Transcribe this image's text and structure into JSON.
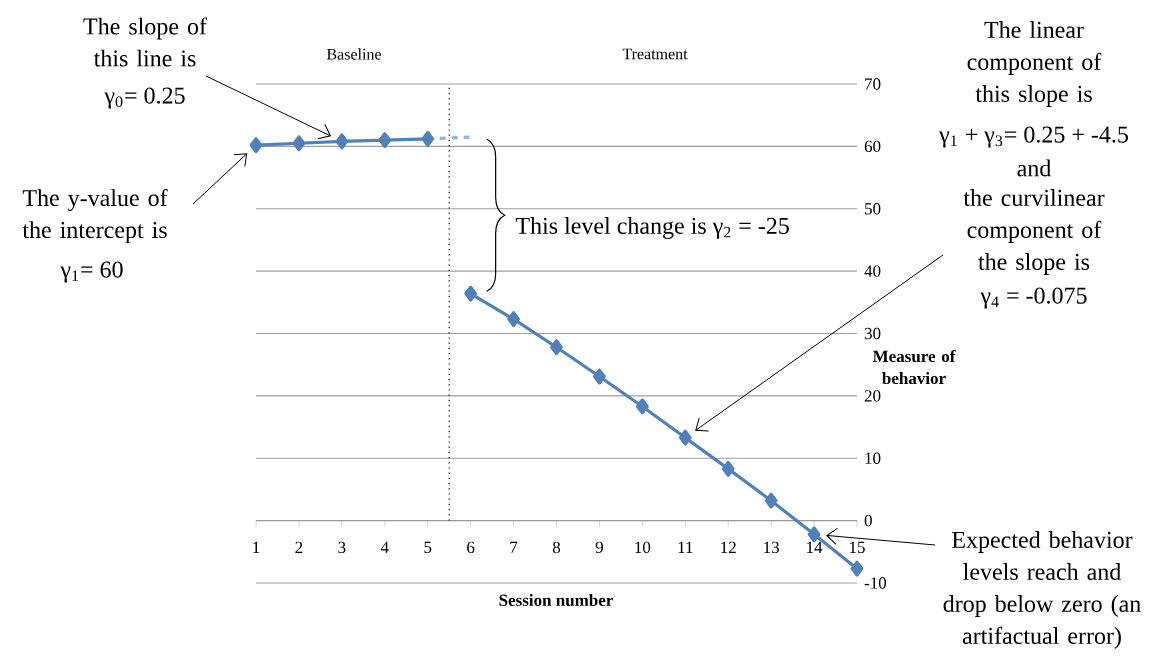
{
  "chart_data": {
    "type": "line",
    "xlabel": "Session number",
    "ylabel": "Measure of behavior",
    "xlim": [
      1,
      15
    ],
    "xticks": [
      1,
      2,
      3,
      4,
      5,
      6,
      7,
      8,
      9,
      10,
      11,
      12,
      13,
      14,
      15
    ],
    "ylim": [
      -10,
      70
    ],
    "yticks": [
      -10,
      0,
      10,
      20,
      30,
      40,
      50,
      60,
      70
    ],
    "grid": "y",
    "marker": "diamond",
    "line_style": "solid",
    "series": [
      {
        "color": "#4f81bd",
        "x": [
          1,
          2,
          3,
          4,
          5
        ],
        "values": [
          60.2,
          60.5,
          60.8,
          61,
          61.2
        ]
      },
      {
        "color": "#4f81bd",
        "x": [
          6,
          7,
          8,
          9,
          10,
          11,
          12,
          13,
          14,
          15
        ],
        "values": [
          36.4,
          32.3,
          27.8,
          23.1,
          18.3,
          13.3,
          8.3,
          3.2,
          -2.2,
          -7.7
        ]
      },
      {
        "color": "#95b3d7",
        "x": [
          5,
          6
        ],
        "values": [
          61.2,
          61.5
        ],
        "marker": "none",
        "line_style": "dashed"
      }
    ],
    "ref_lines": [
      {
        "axis": "x",
        "value": 5.5,
        "line_style": "dotted",
        "color": "#000000"
      }
    ],
    "annotations": [
      "Baseline",
      "Treatment",
      "The slope of this line is",
      "γ$_{0}$= 0.25",
      "The y-value of the intercept is",
      "γ$_{1}$= 60",
      "This level change is γ$_{2}$ = -25",
      "The linear component of this slope is",
      "γ$_{1}$ + γ$_{3}$= 0.25 + -4.5",
      "and",
      "the curvilinear component of the slope is",
      "γ$_{4}$ =  -0.075",
      "Expected behavior levels reach and drop below zero (an artifactual error)"
    ]
  }
}
